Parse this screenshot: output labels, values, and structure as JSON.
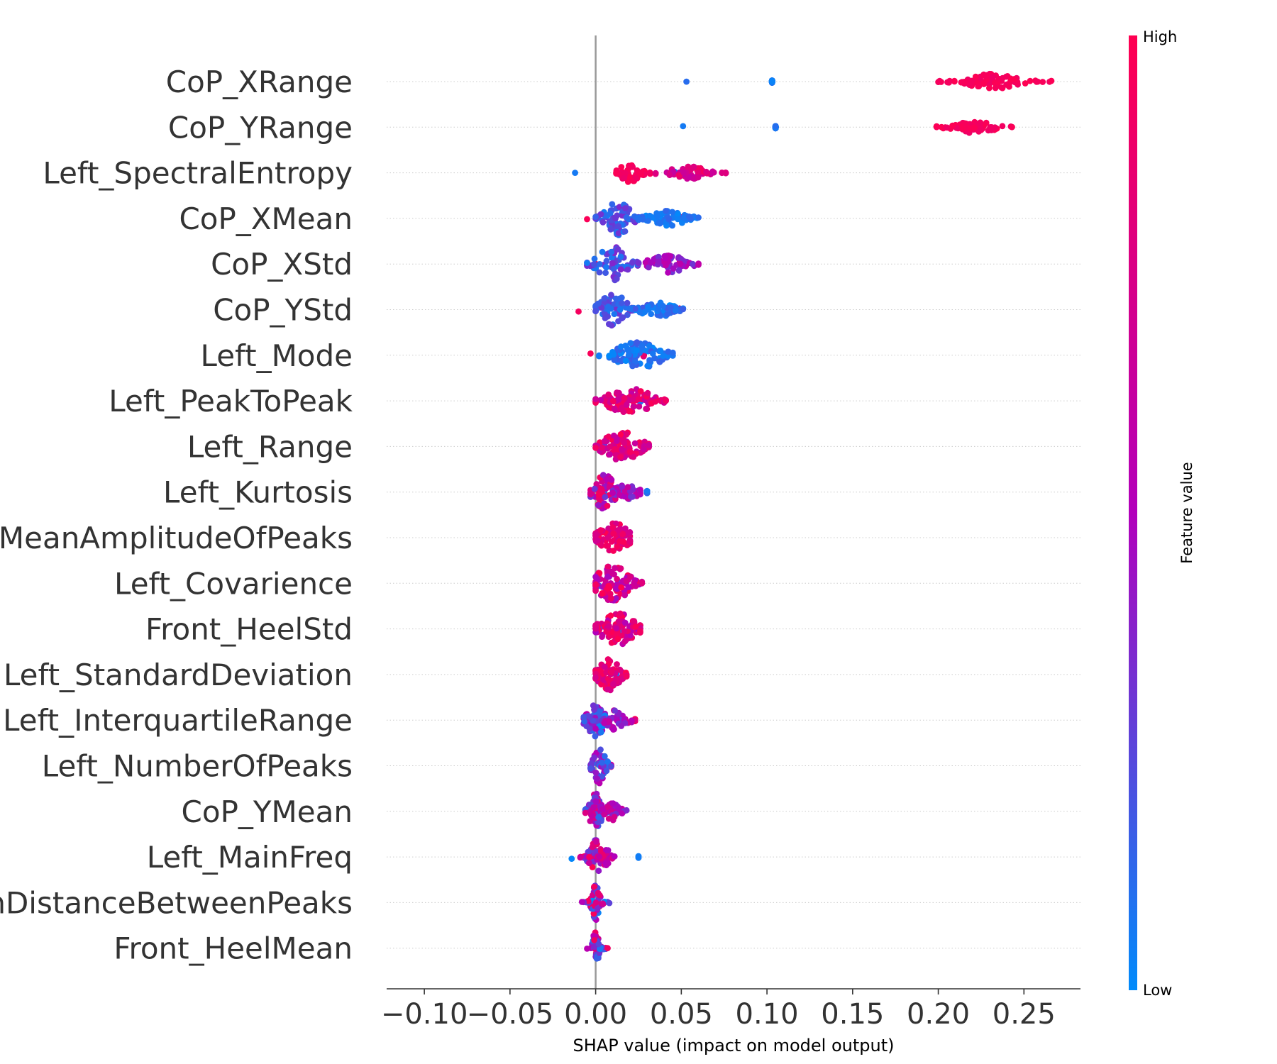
{
  "chart_data": {
    "type": "scatter",
    "subtype": "shap-beeswarm",
    "xlabel": "SHAP value (impact on model output)",
    "xlim": [
      -0.122,
      0.283
    ],
    "xticks": [
      -0.1,
      -0.05,
      0.0,
      0.05,
      0.1,
      0.15,
      0.2,
      0.25
    ],
    "xtick_labels": [
      "−0.10",
      "−0.05",
      "0.00",
      "0.05",
      "0.10",
      "0.15",
      "0.20",
      "0.25"
    ],
    "zero_line": 0,
    "grid": "dotted horizontal row lines",
    "colorbar": {
      "label": "Feature value",
      "high_label": "High",
      "low_label": "Low",
      "low_color": "#008bfb",
      "mid_color": "#b200bb",
      "high_color": "#ff0051"
    },
    "features": [
      {
        "name": "CoP_XRange",
        "clusters": [
          {
            "center": -0.065,
            "spread": 0.014,
            "tail_left": 0.103,
            "tail_right": 0.053,
            "n": 130,
            "value_low": 0.0,
            "value_high": 0.12,
            "thickness": 1.0
          },
          {
            "center": 0.232,
            "spread": 0.011,
            "tail_left": 0.2,
            "tail_right": 0.266,
            "n": 80,
            "value_low": 0.9,
            "value_high": 1.0,
            "thickness": 0.45
          }
        ]
      },
      {
        "name": "CoP_YRange",
        "clusters": [
          {
            "center": -0.067,
            "spread": 0.013,
            "tail_left": 0.105,
            "tail_right": 0.051,
            "n": 130,
            "value_low": 0.0,
            "value_high": 0.12,
            "thickness": 1.0
          },
          {
            "center": 0.22,
            "spread": 0.01,
            "tail_left": 0.199,
            "tail_right": 0.243,
            "n": 70,
            "value_low": 0.9,
            "value_high": 1.0,
            "thickness": 0.35
          }
        ]
      },
      {
        "name": "Left_SpectralEntropy",
        "clusters": [
          {
            "center": -0.03,
            "spread": 0.008,
            "tail_left": 0.046,
            "tail_right": -0.012,
            "n": 80,
            "value_low": 0.0,
            "value_high": 0.12,
            "thickness": 0.9
          },
          {
            "center": 0.02,
            "spread": 0.005,
            "tail_left": 0.012,
            "tail_right": 0.035,
            "n": 45,
            "value_low": 0.88,
            "value_high": 1.0,
            "thickness": 0.55
          },
          {
            "center": 0.055,
            "spread": 0.01,
            "tail_left": 0.035,
            "tail_right": 0.076,
            "n": 55,
            "value_low": 0.6,
            "value_high": 0.95,
            "thickness": 0.35
          }
        ]
      },
      {
        "name": "CoP_XMean",
        "clusters": [
          {
            "center": -0.04,
            "spread": 0.011,
            "tail_left": 0.05,
            "tail_right": -0.005,
            "n": 110,
            "value_low": 0.85,
            "value_high": 1.0,
            "thickness": 0.85
          },
          {
            "center": -0.008,
            "spread": 0.009,
            "tail_left": 0.025,
            "tail_right": 0.01,
            "n": 60,
            "value_low": 0.45,
            "value_high": 0.85,
            "thickness": 0.6
          },
          {
            "center": 0.013,
            "spread": 0.006,
            "tail_left": 0.0,
            "tail_right": 0.025,
            "n": 70,
            "value_low": 0.05,
            "value_high": 0.35,
            "thickness": 1.0
          },
          {
            "center": 0.042,
            "spread": 0.009,
            "tail_left": 0.025,
            "tail_right": 0.06,
            "n": 65,
            "value_low": 0.0,
            "value_high": 0.15,
            "thickness": 0.45
          }
        ]
      },
      {
        "name": "CoP_XStd",
        "clusters": [
          {
            "center": -0.03,
            "spread": 0.013,
            "tail_left": 0.049,
            "tail_right": 0.0,
            "n": 115,
            "value_low": 0.82,
            "value_high": 1.0,
            "thickness": 0.7
          },
          {
            "center": 0.01,
            "spread": 0.007,
            "tail_left": -0.005,
            "tail_right": 0.025,
            "n": 65,
            "value_low": 0.05,
            "value_high": 0.4,
            "thickness": 1.0
          },
          {
            "center": 0.042,
            "spread": 0.009,
            "tail_left": 0.025,
            "tail_right": 0.06,
            "n": 60,
            "value_low": 0.3,
            "value_high": 0.6,
            "thickness": 0.5
          }
        ]
      },
      {
        "name": "CoP_YStd",
        "clusters": [
          {
            "center": -0.03,
            "spread": 0.011,
            "tail_left": 0.049,
            "tail_right": -0.01,
            "n": 90,
            "value_low": 0.78,
            "value_high": 1.0,
            "thickness": 0.9
          },
          {
            "center": -0.003,
            "spread": 0.009,
            "tail_left": 0.02,
            "tail_right": 0.01,
            "n": 60,
            "value_low": 0.4,
            "value_high": 0.8,
            "thickness": 0.6
          },
          {
            "center": 0.01,
            "spread": 0.006,
            "tail_left": 0.0,
            "tail_right": 0.025,
            "n": 60,
            "value_low": 0.05,
            "value_high": 0.35,
            "thickness": 1.0
          },
          {
            "center": 0.035,
            "spread": 0.008,
            "tail_left": 0.02,
            "tail_right": 0.051,
            "n": 55,
            "value_low": 0.0,
            "value_high": 0.2,
            "thickness": 0.5
          }
        ]
      },
      {
        "name": "Left_Mode",
        "clusters": [
          {
            "center": -0.015,
            "spread": 0.006,
            "tail_left": 0.028,
            "tail_right": -0.003,
            "n": 90,
            "value_low": 0.68,
            "value_high": 1.0,
            "thickness": 1.0
          },
          {
            "center": 0.025,
            "spread": 0.011,
            "tail_left": 0.002,
            "tail_right": 0.045,
            "n": 100,
            "value_low": 0.0,
            "value_high": 0.18,
            "thickness": 0.75
          }
        ]
      },
      {
        "name": "Left_PeakToPeak",
        "clusters": [
          {
            "center": -0.012,
            "spread": 0.008,
            "tail_left": 0.026,
            "tail_right": 0.005,
            "n": 90,
            "value_low": 0.0,
            "value_high": 0.35,
            "thickness": 1.0
          },
          {
            "center": 0.02,
            "spread": 0.011,
            "tail_left": 0.0,
            "tail_right": 0.041,
            "n": 90,
            "value_low": 0.6,
            "value_high": 1.0,
            "thickness": 0.7
          }
        ]
      },
      {
        "name": "Left_Range",
        "clusters": [
          {
            "center": -0.008,
            "spread": 0.007,
            "tail_left": 0.018,
            "tail_right": 0.005,
            "n": 100,
            "value_low": 0.0,
            "value_high": 0.4,
            "thickness": 1.0
          },
          {
            "center": 0.016,
            "spread": 0.009,
            "tail_left": 0.0,
            "tail_right": 0.031,
            "n": 100,
            "value_low": 0.6,
            "value_high": 1.0,
            "thickness": 0.9
          }
        ]
      },
      {
        "name": "Left_Kurtosis",
        "clusters": [
          {
            "center": -0.012,
            "spread": 0.01,
            "tail_left": 0.03,
            "tail_right": 0.005,
            "n": 60,
            "value_low": 0.0,
            "value_high": 0.25,
            "thickness": 0.4
          },
          {
            "center": 0.005,
            "spread": 0.005,
            "tail_left": -0.003,
            "tail_right": 0.015,
            "n": 70,
            "value_low": 0.3,
            "value_high": 0.95,
            "thickness": 1.0
          },
          {
            "center": 0.018,
            "spread": 0.006,
            "tail_left": 0.01,
            "tail_right": 0.026,
            "n": 35,
            "value_low": 0.25,
            "value_high": 0.65,
            "thickness": 0.45
          }
        ]
      },
      {
        "name": "Left_MeanAmplitudeOfPeaks",
        "clusters": [
          {
            "center": -0.007,
            "spread": 0.004,
            "tail_left": 0.014,
            "tail_right": 0.002,
            "n": 90,
            "value_low": 0.0,
            "value_high": 0.2,
            "thickness": 1.0
          },
          {
            "center": 0.011,
            "spread": 0.007,
            "tail_left": 0.0,
            "tail_right": 0.02,
            "n": 90,
            "value_low": 0.65,
            "value_high": 1.0,
            "thickness": 0.85
          }
        ]
      },
      {
        "name": "Left_Covarience",
        "clusters": [
          {
            "center": -0.007,
            "spread": 0.005,
            "tail_left": 0.014,
            "tail_right": 0.002,
            "n": 75,
            "value_low": 0.0,
            "value_high": 0.2,
            "thickness": 0.9
          },
          {
            "center": 0.01,
            "spread": 0.008,
            "tail_left": 0.0,
            "tail_right": 0.027,
            "n": 95,
            "value_low": 0.45,
            "value_high": 1.0,
            "thickness": 1.0
          }
        ]
      },
      {
        "name": "Front_HeelStd",
        "clusters": [
          {
            "center": -0.006,
            "spread": 0.006,
            "tail_left": 0.014,
            "tail_right": 0.003,
            "n": 100,
            "value_low": 0.0,
            "value_high": 0.25,
            "thickness": 1.0
          },
          {
            "center": 0.013,
            "spread": 0.008,
            "tail_left": 0.0,
            "tail_right": 0.026,
            "n": 95,
            "value_low": 0.5,
            "value_high": 1.0,
            "thickness": 0.9
          }
        ]
      },
      {
        "name": "Left_StandardDeviation",
        "clusters": [
          {
            "center": -0.006,
            "spread": 0.004,
            "tail_left": 0.012,
            "tail_right": 0.002,
            "n": 80,
            "value_low": 0.0,
            "value_high": 0.2,
            "thickness": 1.0
          },
          {
            "center": 0.008,
            "spread": 0.005,
            "tail_left": 0.0,
            "tail_right": 0.018,
            "n": 80,
            "value_low": 0.7,
            "value_high": 1.0,
            "thickness": 0.9
          }
        ]
      },
      {
        "name": "Left_InterquartileRange",
        "clusters": [
          {
            "center": -0.01,
            "spread": 0.007,
            "tail_left": 0.023,
            "tail_right": 0.0,
            "n": 45,
            "value_low": 0.72,
            "value_high": 1.0,
            "thickness": 0.5
          },
          {
            "center": 0.0,
            "spread": 0.004,
            "tail_left": -0.007,
            "tail_right": 0.008,
            "n": 70,
            "value_low": 0.0,
            "value_high": 0.6,
            "thickness": 1.0
          },
          {
            "center": 0.012,
            "spread": 0.005,
            "tail_left": 0.005,
            "tail_right": 0.021,
            "n": 35,
            "value_low": 0.3,
            "value_high": 0.7,
            "thickness": 0.6
          }
        ]
      },
      {
        "name": "Left_NumberOfPeaks",
        "clusters": [
          {
            "center": -0.003,
            "spread": 0.003,
            "tail_left": 0.009,
            "tail_right": 0.002,
            "n": 45,
            "value_low": 0.4,
            "value_high": 1.0,
            "thickness": 0.8
          },
          {
            "center": 0.002,
            "spread": 0.003,
            "tail_left": -0.003,
            "tail_right": 0.009,
            "n": 50,
            "value_low": 0.0,
            "value_high": 0.55,
            "thickness": 1.0
          }
        ]
      },
      {
        "name": "CoP_YMean",
        "clusters": [
          {
            "center": -0.005,
            "spread": 0.004,
            "tail_left": 0.013,
            "tail_right": 0.0,
            "n": 40,
            "value_low": 0.75,
            "value_high": 1.0,
            "thickness": 0.6
          },
          {
            "center": 0.0,
            "spread": 0.003,
            "tail_left": -0.006,
            "tail_right": 0.007,
            "n": 60,
            "value_low": 0.1,
            "value_high": 0.8,
            "thickness": 1.0
          },
          {
            "center": 0.01,
            "spread": 0.004,
            "tail_left": 0.004,
            "tail_right": 0.018,
            "n": 30,
            "value_low": 0.3,
            "value_high": 0.75,
            "thickness": 0.5
          }
        ]
      },
      {
        "name": "Left_MainFreq",
        "clusters": [
          {
            "center": -0.018,
            "spread": 0.004,
            "tail_left": 0.025,
            "tail_right": -0.014,
            "n": 3,
            "value_low": 0.0,
            "value_high": 0.1,
            "thickness": 0.2
          },
          {
            "center": 0.0,
            "spread": 0.003,
            "tail_left": -0.009,
            "tail_right": 0.006,
            "n": 55,
            "value_low": 0.2,
            "value_high": 1.0,
            "thickness": 1.0
          },
          {
            "center": 0.006,
            "spread": 0.002,
            "tail_left": 0.002,
            "tail_right": 0.011,
            "n": 20,
            "value_low": 0.45,
            "value_high": 0.9,
            "thickness": 0.5
          }
        ]
      },
      {
        "name": "Left_MeanDistanceBetweenPeaks",
        "clusters": [
          {
            "center": 0.0,
            "spread": 0.002,
            "tail_left": -0.008,
            "tail_right": 0.008,
            "n": 55,
            "value_low": 0.0,
            "value_high": 1.0,
            "thickness": 1.0
          }
        ]
      },
      {
        "name": "Front_HeelMean",
        "clusters": [
          {
            "center": 0.0,
            "spread": 0.0015,
            "tail_left": -0.005,
            "tail_right": 0.007,
            "n": 45,
            "value_low": 0.0,
            "value_high": 1.0,
            "thickness": 1.0
          }
        ]
      }
    ]
  }
}
